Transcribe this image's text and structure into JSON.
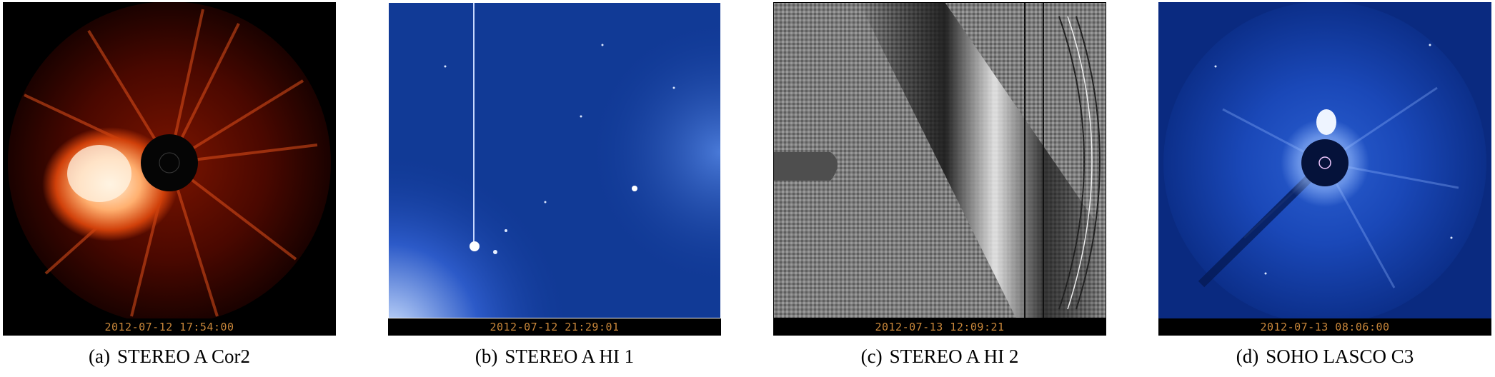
{
  "panels": [
    {
      "tag": "(a)",
      "title": "STEREO A Cor2",
      "timestamp": "2012-07-12 17:54:00",
      "palette": "red"
    },
    {
      "tag": "(b)",
      "title": "STEREO A HI 1",
      "timestamp": "2012-07-12 21:29:01",
      "palette": "blue"
    },
    {
      "tag": "(c)",
      "title": "STEREO A HI 2",
      "timestamp": "2012-07-13 12:09:21",
      "palette": "gray"
    },
    {
      "tag": "(d)",
      "title": "SOHO LASCO C3",
      "timestamp": "2012-07-13 08:06:00",
      "palette": "blue"
    }
  ]
}
